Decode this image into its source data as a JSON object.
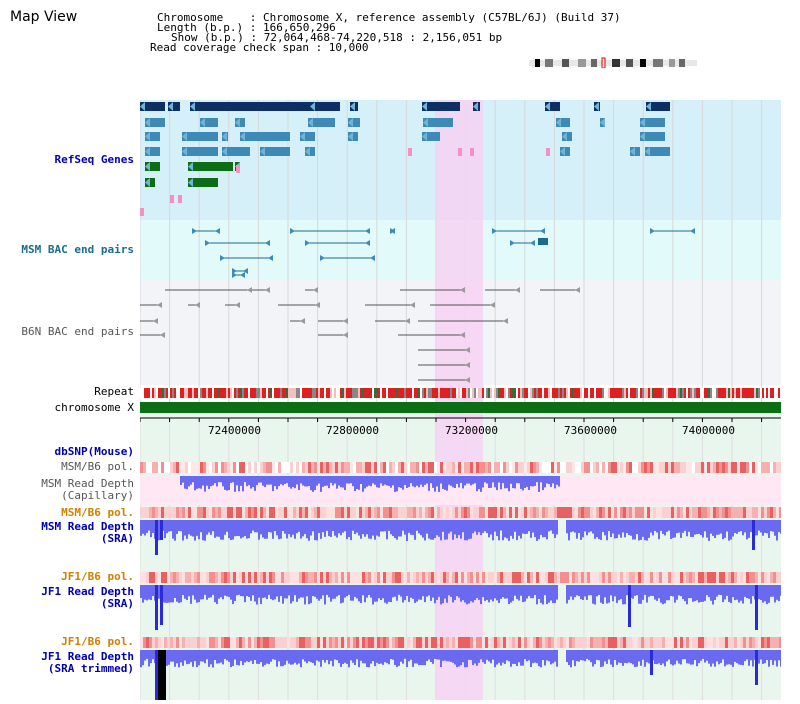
{
  "app": {
    "title": "Map View"
  },
  "info": {
    "chromosome": "Chromosome    : Chromosome X, reference assembly (C57BL/6J) (Build 37)",
    "length": "Length (b.p.) : 166,650,296",
    "show": "Show (b.p.) : 72,064,468-74,220,518 : 2,156,051 bp",
    "coverage": "Read coverage check span : 10,000"
  },
  "tracks": {
    "refseq": "RefSeq Genes",
    "msm_bac": "MSM BAC end pairs",
    "b6n_bac": "B6N BAC end pairs",
    "repeat": "Repeat",
    "chrom": "chromosome X",
    "dbsnp": "dbSNP(Mouse)",
    "msm_pol1": "MSM/B6 pol.",
    "msm_cap_1": "MSM Read Depth",
    "msm_cap_2": "(Capillary)",
    "msm_pol2": "MSM/B6 pol.",
    "msm_sra_1": "MSM Read Depth",
    "msm_sra_2": "(SRA)",
    "jf1_pol1": "JF1/B6 pol.",
    "jf1_sra_1": "JF1 Read Depth",
    "jf1_sra_2": "(SRA)",
    "jf1_pol2": "JF1/B6 pol.",
    "jf1_trim_1": "JF1 Read Depth",
    "jf1_trim_2": "(SRA trimmed)"
  },
  "axis": {
    "ticks": [
      "72400000",
      "72800000",
      "73200000",
      "73600000",
      "74000000"
    ]
  },
  "colors": {
    "refseq_bg": "#d6f0fa",
    "msm_bac_bg": "#e2fafa",
    "highlight": "#f7d2f3",
    "gene_dark": "#0e2f66",
    "gene_mid": "#3d8ab8",
    "gene_green": "#0b6e14",
    "gene_pink": "#f78fc0",
    "chrom_green": "#0b6e14",
    "depth_blue": "#6a6af0",
    "pol_red": "#e05050"
  }
}
